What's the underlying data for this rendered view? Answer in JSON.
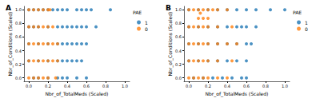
{
  "chart_data": [
    {
      "type": "scatter",
      "title": "A",
      "x_label": "Nbr_of_TotalMeds (Scaled)",
      "y_label": "Nbr_of_Conditions (Scaled)",
      "xlim": [
        -0.05,
        1.05
      ],
      "ylim": [
        -0.05,
        1.05
      ],
      "xticks": [
        {
          "value": 0,
          "label": "0.0"
        },
        0.2,
        0.4,
        0.6,
        0.8,
        {
          "value": 1,
          "label": "1.0"
        }
      ],
      "yticks": [
        {
          "value": 0,
          "label": "0.0"
        },
        0.2,
        0.4,
        0.6,
        0.8,
        {
          "value": 1,
          "label": "1.0"
        }
      ],
      "legend": "upper right",
      "legend_title": "PAE",
      "grid": false,
      "series": [
        {
          "name": "1",
          "color": "#1f77b4",
          "x": [
            0.0,
            0.05,
            0.1,
            0.15,
            0.2,
            0.25,
            0.3,
            0.35,
            0.4,
            0.5,
            0.55,
            0.6,
            0.65,
            0.85,
            0.0,
            0.05,
            0.1,
            0.2,
            0.3,
            0.35,
            0.4,
            0.45,
            0.5,
            0.55,
            0.6,
            0.7,
            0.0,
            0.1,
            0.2,
            0.3,
            0.35,
            0.4,
            0.45,
            0.5,
            0.55,
            0.6,
            0.0,
            0.1,
            0.2,
            0.3,
            0.35,
            0.4,
            0.45,
            0.5,
            0.55,
            0.05,
            0.1,
            0.2,
            0.3,
            0.35,
            0.4,
            0.5,
            0.6
          ],
          "y": [
            1,
            1,
            1,
            1,
            1,
            1,
            1,
            1,
            1,
            1,
            1,
            1,
            1,
            1,
            0.75,
            0.75,
            0.75,
            0.75,
            0.75,
            0.75,
            0.75,
            0.75,
            0.75,
            0.75,
            0.75,
            0.75,
            0.5,
            0.5,
            0.5,
            0.5,
            0.5,
            0.5,
            0.5,
            0.5,
            0.5,
            0.5,
            0.25,
            0.25,
            0.25,
            0.25,
            0.25,
            0.25,
            0.25,
            0.25,
            0.25,
            0,
            0,
            0,
            0,
            0,
            0,
            0,
            0
          ]
        },
        {
          "name": "0",
          "color": "#ff7f0e",
          "x": [
            0.0,
            0.05,
            0.1,
            0.15,
            0.2,
            0.22,
            0.0,
            0.05,
            0.1,
            0.15,
            0.2,
            0.25,
            0.0,
            0.05,
            0.1,
            0.15,
            0.2,
            0.25,
            0.3,
            0.0,
            0.05,
            0.1,
            0.15,
            0.2,
            0.25,
            0.3,
            0.0,
            0.05,
            0.1,
            0.15,
            0.2,
            0.28
          ],
          "y": [
            1,
            1,
            1,
            1,
            1,
            1,
            0.75,
            0.75,
            0.75,
            0.75,
            0.75,
            0.75,
            0.5,
            0.5,
            0.5,
            0.5,
            0.5,
            0.5,
            0.5,
            0.25,
            0.25,
            0.25,
            0.25,
            0.25,
            0.25,
            0.25,
            0,
            0,
            0,
            0,
            0,
            0
          ]
        }
      ]
    },
    {
      "type": "scatter",
      "title": "B",
      "x_label": "Nbr_of_TotalMeds (Scaled)",
      "y_label": "Nbr_of_Conditions (Scaled)",
      "xlim": [
        -0.05,
        1.05
      ],
      "ylim": [
        -0.05,
        1.05
      ],
      "xticks": [
        {
          "value": 0,
          "label": "0.0"
        },
        0.2,
        0.4,
        0.6,
        0.8,
        {
          "value": 1,
          "label": "1.0"
        }
      ],
      "yticks": [
        {
          "value": 0,
          "label": "0.0"
        },
        0.2,
        0.4,
        0.6,
        0.8,
        {
          "value": 1,
          "label": "1.0"
        }
      ],
      "legend": "upper right",
      "legend_title": "PAE",
      "grid": false,
      "series": [
        {
          "name": "1",
          "color": "#1f77b4",
          "x": [
            0.0,
            0.1,
            0.2,
            0.3,
            0.4,
            0.5,
            0.6,
            0.7,
            0.85,
            1.0,
            0.0,
            0.1,
            0.2,
            0.3,
            0.4,
            0.5,
            0.55,
            0.6,
            0.7,
            0.0,
            0.1,
            0.2,
            0.3,
            0.4,
            0.5,
            0.6,
            0.65,
            0.0,
            0.1,
            0.2,
            0.3,
            0.4,
            0.5,
            0.6,
            0.05,
            0.15,
            0.25,
            0.35,
            0.45,
            0.55,
            0.6
          ],
          "y": [
            1,
            1,
            1,
            1,
            1,
            1,
            1,
            1,
            1,
            1,
            0.75,
            0.75,
            0.75,
            0.75,
            0.75,
            0.75,
            0.75,
            0.75,
            0.75,
            0.5,
            0.5,
            0.5,
            0.5,
            0.5,
            0.5,
            0.5,
            0.5,
            0.25,
            0.25,
            0.25,
            0.25,
            0.25,
            0.25,
            0.25,
            0,
            0,
            0,
            0,
            0,
            0,
            0
          ]
        },
        {
          "name": "0",
          "color": "#ff7f0e",
          "x": [
            0.0,
            0.05,
            0.1,
            0.15,
            0.2,
            0.25,
            0.3,
            0.4,
            0.12,
            0.1,
            0.15,
            0.2,
            0.0,
            0.05,
            0.1,
            0.15,
            0.2,
            0.3,
            0.45,
            0.0,
            0.05,
            0.1,
            0.15,
            0.2,
            0.3,
            0.4,
            0.5,
            0.0,
            0.05,
            0.1,
            0.15,
            0.2,
            0.3,
            0.45,
            0.0,
            0.05,
            0.1,
            0.15,
            0.2,
            0.3,
            0.4
          ],
          "y": [
            1,
            1,
            1,
            1,
            1,
            1,
            1,
            1,
            0.95,
            0.875,
            0.875,
            0.875,
            0.75,
            0.75,
            0.75,
            0.75,
            0.75,
            0.75,
            0.75,
            0.5,
            0.5,
            0.5,
            0.5,
            0.5,
            0.5,
            0.5,
            0.5,
            0.25,
            0.25,
            0.25,
            0.25,
            0.25,
            0.25,
            0.25,
            0,
            0,
            0,
            0,
            0,
            0,
            0
          ]
        }
      ]
    }
  ]
}
